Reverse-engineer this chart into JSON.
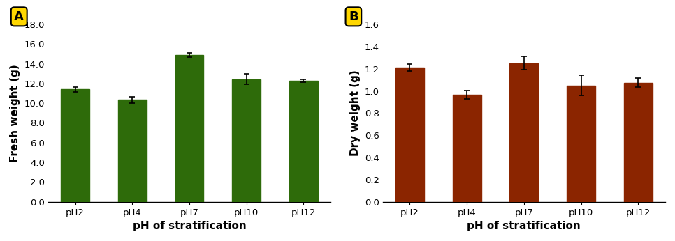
{
  "categories": [
    "pH2",
    "pH4",
    "pH7",
    "pH10",
    "pH12"
  ],
  "fresh_weight_values": [
    11.4,
    10.35,
    14.9,
    12.45,
    12.3
  ],
  "fresh_weight_errors": [
    0.25,
    0.3,
    0.2,
    0.55,
    0.15
  ],
  "fresh_weight_ylim": [
    0,
    18.0
  ],
  "fresh_weight_yticks": [
    0.0,
    2.0,
    4.0,
    6.0,
    8.0,
    10.0,
    12.0,
    14.0,
    16.0,
    18.0
  ],
  "fresh_weight_ylabel": "Fresh weight (g)",
  "fresh_weight_xlabel": "pH of stratification",
  "fresh_weight_color": "#2E6B0A",
  "fresh_weight_label": "A",
  "dry_weight_values": [
    1.21,
    0.965,
    1.25,
    1.05,
    1.075
  ],
  "dry_weight_errors": [
    0.03,
    0.04,
    0.06,
    0.09,
    0.04
  ],
  "dry_weight_ylim": [
    0,
    1.6
  ],
  "dry_weight_yticks": [
    0.0,
    0.2,
    0.4,
    0.6,
    0.8,
    1.0,
    1.2,
    1.4,
    1.6
  ],
  "dry_weight_ylabel": "Dry weight (g)",
  "dry_weight_xlabel": "pH of stratification",
  "dry_weight_color": "#8B2500",
  "dry_weight_label": "B",
  "label_box_color": "#FFD700",
  "label_fontsize": 13,
  "axis_label_fontsize": 11,
  "tick_fontsize": 9.5,
  "bar_width": 0.5,
  "error_capsize": 3,
  "error_linewidth": 1.2,
  "background_color": "#ffffff"
}
